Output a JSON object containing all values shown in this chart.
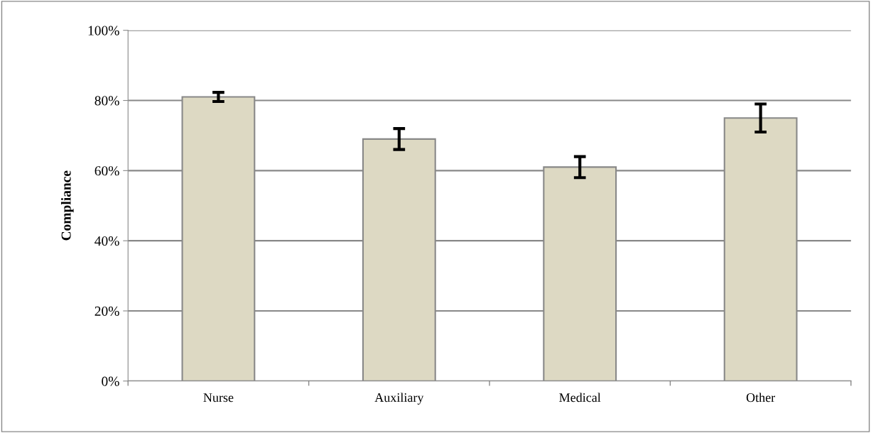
{
  "chart_data": {
    "type": "bar",
    "ylabel": "Compliance",
    "categories": [
      "Nurse",
      "Auxiliary",
      "Medical",
      "Other"
    ],
    "values": [
      81,
      69,
      61,
      75
    ],
    "errors": [
      1.3,
      3,
      3,
      4
    ],
    "color": "#ddd9c3",
    "ylim": [
      0,
      100
    ],
    "yticks": [
      {
        "value": 0,
        "label": "0%"
      },
      {
        "value": 20,
        "label": "20%"
      },
      {
        "value": 40,
        "label": "40%"
      },
      {
        "value": 60,
        "label": "60%"
      },
      {
        "value": 80,
        "label": "80%"
      },
      {
        "value": 100,
        "label": "100%"
      }
    ],
    "grid": "y"
  }
}
